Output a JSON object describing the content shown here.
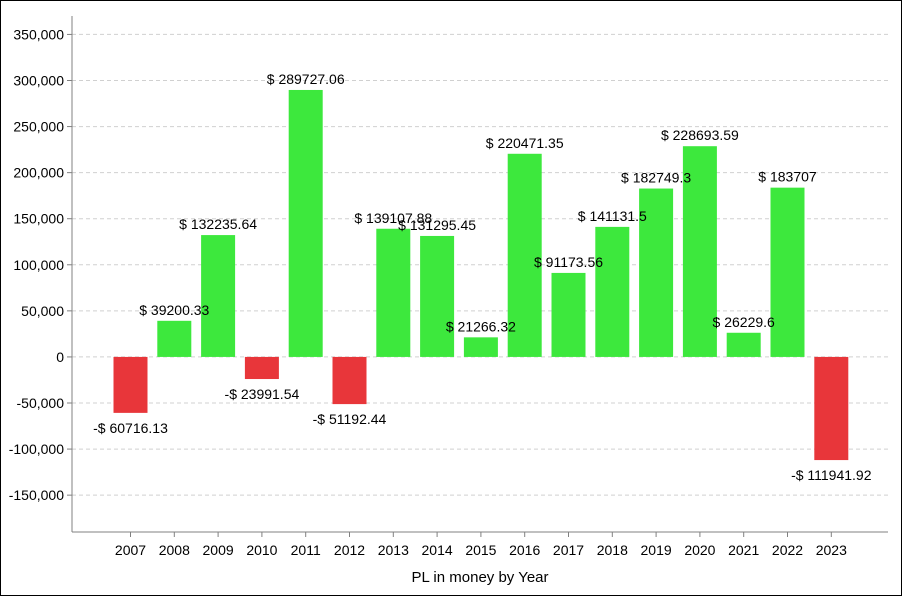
{
  "chart_data": {
    "type": "bar",
    "title": "",
    "xlabel": "PL in money by Year",
    "ylabel": "",
    "ylim": [
      -190000,
      370000
    ],
    "yticks": [
      350000,
      300000,
      250000,
      200000,
      150000,
      100000,
      50000,
      0,
      -50000,
      -100000,
      -150000
    ],
    "ytick_labels": [
      "350,000",
      "300,000",
      "250,000",
      "200,000",
      "150,000",
      "100,000",
      "50,000",
      "0",
      "-50,000",
      "-100,000",
      "-150,000"
    ],
    "grid": true,
    "legend": "none",
    "categories": [
      "2007",
      "2008",
      "2009",
      "2010",
      "2011",
      "2012",
      "2013",
      "2014",
      "2015",
      "2016",
      "2017",
      "2018",
      "2019",
      "2020",
      "2021",
      "2022",
      "2023"
    ],
    "values": [
      -60716.13,
      39200.33,
      132235.64,
      -23991.54,
      289727.06,
      -51192.44,
      139107.88,
      131295.45,
      21266.32,
      220471.35,
      91173.56,
      141131.5,
      182749.3,
      228693.59,
      26229.6,
      183707,
      -111941.92
    ],
    "data_labels": [
      "-$ 60716.13",
      "$ 39200.33",
      "$ 132235.64",
      "-$ 23991.54",
      "$ 289727.06",
      "-$ 51192.44",
      "$ 139107.88",
      "$ 131295.45",
      "$ 21266.32",
      "$ 220471.35",
      "$ 91173.56",
      "$ 141131.5",
      "$ 182749.3",
      "$ 228693.59",
      "$ 26229.6",
      "$ 183707",
      "-$ 111941.92"
    ],
    "colors": {
      "positive": "#3de83d",
      "negative": "#e8363a",
      "grid": "#d0d0d0",
      "axis": "#808080"
    }
  }
}
